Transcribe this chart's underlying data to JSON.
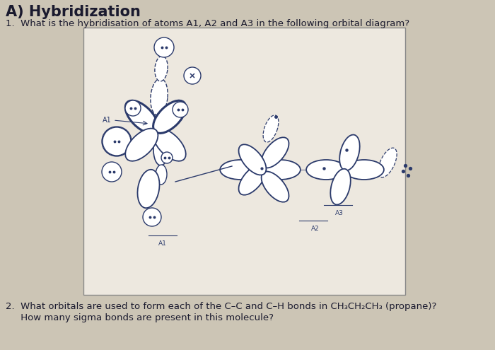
{
  "title": "A) Hybridization",
  "title_fontsize": 15,
  "title_bold": true,
  "q1_text": "1.  What is the hybridisation of atoms A1, A2 and A3 in the following orbital diagram?",
  "q2_line1": "2.  What orbitals are used to form each of the C–C and C–H bonds in CH₃CH₂CH₃ (propane)?",
  "q2_line2": "     How many sigma bonds are present in this molecule?",
  "q1_fontsize": 9.5,
  "q2_fontsize": 9.5,
  "bg_color": "#ccc5b5",
  "box_bg": "#ede8df",
  "text_color": "#1a1a2e",
  "orb_edge": "#2b3a6b",
  "label_color": "#2b3a6b"
}
